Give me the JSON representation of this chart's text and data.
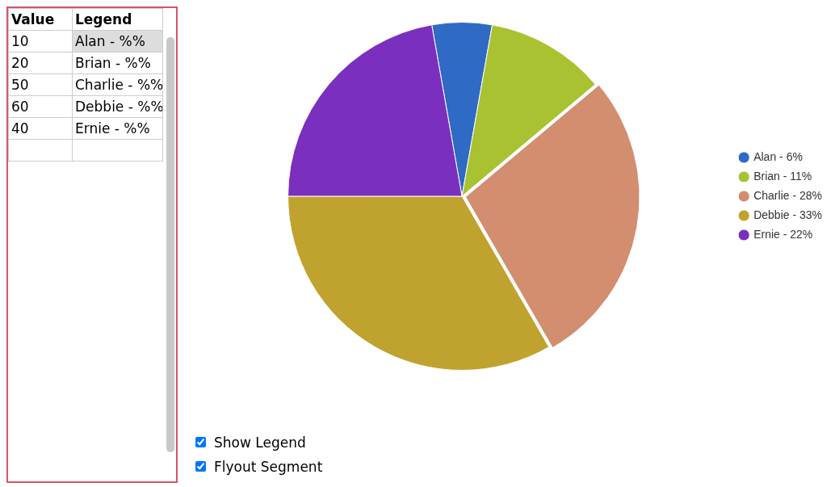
{
  "chart_data": {
    "type": "pie",
    "categories": [
      "Alan - 6%",
      "Brian - 11%",
      "Charlie - 28%",
      "Debbie - 33%",
      "Ernie - 22%"
    ],
    "values": [
      5.56,
      11.11,
      27.78,
      33.33,
      22.22
    ],
    "colors": [
      "#2f6ac4",
      "#a8c232",
      "#d38d6f",
      "#c0a22e",
      "#7a2fbf"
    ],
    "legend": "right",
    "annotations": [
      "Value",
      "Legend",
      "10",
      "Alan - %%",
      "20",
      "Brian - %%",
      "50",
      "Charlie - %%",
      "60",
      "Debbie - %%",
      "40",
      "Ernie - %%",
      "Show Legend",
      "Flyout Segment"
    ]
  }
}
